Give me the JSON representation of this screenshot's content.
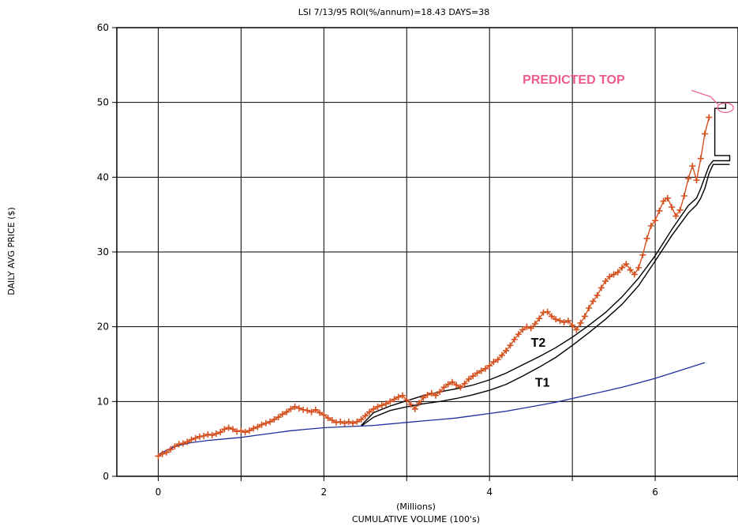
{
  "chart_data": {
    "type": "line",
    "title": "LSI  7/13/95  ROI(%/annum)=18.43  DAYS=38",
    "xlabel": "CUMULATIVE VOLUME (100's)",
    "xlabel_units": "(Millions)",
    "ylabel": "DAILY AVG PRICE ($)",
    "xlim": [
      -0.5,
      7.0
    ],
    "ylim": [
      0,
      60
    ],
    "x_ticks": [
      0,
      2,
      4,
      6
    ],
    "y_ticks": [
      0,
      10,
      20,
      30,
      40,
      50,
      60
    ],
    "grid": true,
    "colors": {
      "price": "#d4501e",
      "trend": "#000000",
      "baseline": "#1f2f9e",
      "annotation": "#ee5a8a"
    },
    "series": [
      {
        "key": "price",
        "marker": "+",
        "points": [
          [
            0.0,
            2.7
          ],
          [
            0.05,
            3.0
          ],
          [
            0.1,
            3.2
          ],
          [
            0.15,
            3.6
          ],
          [
            0.2,
            4.0
          ],
          [
            0.25,
            4.3
          ],
          [
            0.3,
            4.4
          ],
          [
            0.35,
            4.6
          ],
          [
            0.4,
            4.9
          ],
          [
            0.45,
            5.1
          ],
          [
            0.5,
            5.3
          ],
          [
            0.55,
            5.4
          ],
          [
            0.6,
            5.6
          ],
          [
            0.65,
            5.5
          ],
          [
            0.7,
            5.7
          ],
          [
            0.75,
            5.9
          ],
          [
            0.8,
            6.3
          ],
          [
            0.85,
            6.5
          ],
          [
            0.9,
            6.3
          ],
          [
            0.95,
            6.0
          ],
          [
            1.0,
            6.1
          ],
          [
            1.05,
            5.9
          ],
          [
            1.1,
            6.1
          ],
          [
            1.15,
            6.4
          ],
          [
            1.2,
            6.6
          ],
          [
            1.25,
            6.9
          ],
          [
            1.3,
            7.1
          ],
          [
            1.35,
            7.3
          ],
          [
            1.4,
            7.6
          ],
          [
            1.45,
            7.9
          ],
          [
            1.5,
            8.3
          ],
          [
            1.55,
            8.6
          ],
          [
            1.6,
            9.0
          ],
          [
            1.65,
            9.3
          ],
          [
            1.7,
            9.1
          ],
          [
            1.75,
            8.9
          ],
          [
            1.8,
            8.8
          ],
          [
            1.85,
            8.6
          ],
          [
            1.9,
            8.9
          ],
          [
            1.95,
            8.5
          ],
          [
            2.0,
            8.2
          ],
          [
            2.05,
            7.8
          ],
          [
            2.1,
            7.5
          ],
          [
            2.15,
            7.2
          ],
          [
            2.2,
            7.3
          ],
          [
            2.25,
            7.1
          ],
          [
            2.3,
            7.3
          ],
          [
            2.35,
            7.1
          ],
          [
            2.4,
            7.3
          ],
          [
            2.45,
            7.6
          ],
          [
            2.5,
            8.1
          ],
          [
            2.55,
            8.6
          ],
          [
            2.6,
            9.0
          ],
          [
            2.65,
            9.3
          ],
          [
            2.7,
            9.5
          ],
          [
            2.75,
            9.7
          ],
          [
            2.8,
            10.0
          ],
          [
            2.85,
            10.3
          ],
          [
            2.9,
            10.6
          ],
          [
            2.95,
            10.8
          ],
          [
            3.0,
            10.2
          ],
          [
            3.05,
            9.6
          ],
          [
            3.1,
            9.0
          ],
          [
            3.15,
            9.8
          ],
          [
            3.2,
            10.5
          ],
          [
            3.25,
            10.9
          ],
          [
            3.3,
            11.1
          ],
          [
            3.35,
            10.8
          ],
          [
            3.4,
            11.3
          ],
          [
            3.45,
            11.9
          ],
          [
            3.5,
            12.3
          ],
          [
            3.55,
            12.6
          ],
          [
            3.6,
            12.2
          ],
          [
            3.65,
            11.9
          ],
          [
            3.7,
            12.4
          ],
          [
            3.75,
            13.0
          ],
          [
            3.8,
            13.4
          ],
          [
            3.85,
            13.8
          ],
          [
            3.9,
            14.1
          ],
          [
            3.95,
            14.4
          ],
          [
            4.0,
            14.8
          ],
          [
            4.05,
            15.3
          ],
          [
            4.1,
            15.6
          ],
          [
            4.15,
            16.2
          ],
          [
            4.2,
            16.8
          ],
          [
            4.25,
            17.5
          ],
          [
            4.3,
            18.3
          ],
          [
            4.35,
            19.0
          ],
          [
            4.4,
            19.6
          ],
          [
            4.45,
            20.0
          ],
          [
            4.5,
            19.8
          ],
          [
            4.55,
            20.4
          ],
          [
            4.6,
            21.1
          ],
          [
            4.65,
            21.9
          ],
          [
            4.7,
            22.0
          ],
          [
            4.75,
            21.4
          ],
          [
            4.8,
            21.0
          ],
          [
            4.85,
            20.8
          ],
          [
            4.9,
            20.6
          ],
          [
            4.95,
            20.8
          ],
          [
            5.0,
            20.2
          ],
          [
            5.05,
            19.6
          ],
          [
            5.1,
            20.5
          ],
          [
            5.15,
            21.4
          ],
          [
            5.2,
            22.5
          ],
          [
            5.25,
            23.4
          ],
          [
            5.3,
            24.2
          ],
          [
            5.35,
            25.2
          ],
          [
            5.4,
            26.1
          ],
          [
            5.45,
            26.7
          ],
          [
            5.5,
            27.0
          ],
          [
            5.55,
            27.3
          ],
          [
            5.6,
            27.9
          ],
          [
            5.65,
            28.4
          ],
          [
            5.7,
            27.6
          ],
          [
            5.75,
            27.0
          ],
          [
            5.8,
            27.9
          ],
          [
            5.85,
            29.6
          ],
          [
            5.9,
            31.8
          ],
          [
            5.95,
            33.5
          ],
          [
            6.0,
            34.2
          ],
          [
            6.05,
            35.5
          ],
          [
            6.1,
            36.8
          ],
          [
            6.15,
            37.2
          ],
          [
            6.2,
            36.0
          ],
          [
            6.25,
            34.8
          ],
          [
            6.3,
            35.6
          ],
          [
            6.35,
            37.5
          ],
          [
            6.4,
            39.8
          ],
          [
            6.45,
            41.5
          ],
          [
            6.5,
            39.6
          ],
          [
            6.55,
            42.5
          ],
          [
            6.6,
            45.8
          ],
          [
            6.65,
            48.0
          ]
        ]
      },
      {
        "key": "trend-t2",
        "label": "T2",
        "points": [
          [
            2.45,
            6.8
          ],
          [
            2.6,
            8.5
          ],
          [
            2.8,
            9.4
          ],
          [
            3.0,
            10.1
          ],
          [
            3.2,
            10.8
          ],
          [
            3.4,
            11.3
          ],
          [
            3.6,
            11.7
          ],
          [
            3.8,
            12.2
          ],
          [
            4.0,
            12.9
          ],
          [
            4.2,
            13.8
          ],
          [
            4.4,
            14.9
          ],
          [
            4.6,
            16.0
          ],
          [
            4.8,
            17.2
          ],
          [
            5.0,
            18.6
          ],
          [
            5.2,
            20.2
          ],
          [
            5.4,
            21.9
          ],
          [
            5.6,
            24.0
          ],
          [
            5.8,
            26.5
          ],
          [
            6.0,
            29.5
          ],
          [
            6.2,
            33.0
          ],
          [
            6.4,
            36.2
          ],
          [
            6.5,
            37.2
          ],
          [
            6.55,
            38.5
          ],
          [
            6.6,
            40.0
          ],
          [
            6.65,
            41.5
          ],
          [
            6.7,
            42.2
          ],
          [
            6.9,
            42.2
          ],
          [
            6.9,
            42.9
          ],
          [
            6.72,
            42.9
          ],
          [
            6.72,
            49.2
          ],
          [
            6.85,
            49.2
          ],
          [
            6.85,
            49.9
          ],
          [
            6.8,
            49.9
          ]
        ]
      },
      {
        "key": "trend-t1",
        "label": "T1",
        "points": [
          [
            2.45,
            6.7
          ],
          [
            2.6,
            7.9
          ],
          [
            2.8,
            8.8
          ],
          [
            3.0,
            9.3
          ],
          [
            3.2,
            9.7
          ],
          [
            3.4,
            10.0
          ],
          [
            3.6,
            10.4
          ],
          [
            3.8,
            10.9
          ],
          [
            4.0,
            11.5
          ],
          [
            4.2,
            12.3
          ],
          [
            4.4,
            13.4
          ],
          [
            4.6,
            14.6
          ],
          [
            4.8,
            15.9
          ],
          [
            5.0,
            17.5
          ],
          [
            5.2,
            19.2
          ],
          [
            5.4,
            21.0
          ],
          [
            5.6,
            23.0
          ],
          [
            5.8,
            25.5
          ],
          [
            6.0,
            28.8
          ],
          [
            6.2,
            32.2
          ],
          [
            6.4,
            35.2
          ],
          [
            6.5,
            36.3
          ],
          [
            6.55,
            37.2
          ],
          [
            6.6,
            38.5
          ],
          [
            6.65,
            40.5
          ],
          [
            6.7,
            41.7
          ],
          [
            6.9,
            41.7
          ]
        ]
      },
      {
        "key": "baseline",
        "points": [
          [
            0.0,
            2.9
          ],
          [
            0.1,
            3.5
          ],
          [
            0.2,
            4.0
          ],
          [
            0.4,
            4.5
          ],
          [
            0.6,
            4.8
          ],
          [
            0.8,
            5.0
          ],
          [
            1.0,
            5.2
          ],
          [
            1.2,
            5.5
          ],
          [
            1.4,
            5.8
          ],
          [
            1.6,
            6.1
          ],
          [
            1.8,
            6.3
          ],
          [
            2.0,
            6.5
          ],
          [
            2.2,
            6.6
          ],
          [
            2.4,
            6.7
          ],
          [
            2.6,
            6.8
          ],
          [
            2.8,
            7.0
          ],
          [
            3.0,
            7.2
          ],
          [
            3.2,
            7.4
          ],
          [
            3.4,
            7.6
          ],
          [
            3.6,
            7.8
          ],
          [
            3.8,
            8.1
          ],
          [
            4.0,
            8.4
          ],
          [
            4.2,
            8.7
          ],
          [
            4.4,
            9.1
          ],
          [
            4.6,
            9.5
          ],
          [
            4.8,
            9.9
          ],
          [
            5.0,
            10.4
          ],
          [
            5.2,
            10.9
          ],
          [
            5.4,
            11.4
          ],
          [
            5.6,
            11.9
          ],
          [
            5.8,
            12.5
          ],
          [
            6.0,
            13.1
          ],
          [
            6.2,
            13.8
          ],
          [
            6.4,
            14.5
          ],
          [
            6.6,
            15.2
          ]
        ]
      }
    ],
    "annotations": [
      {
        "key": "t2",
        "text": "T2",
        "x": 4.5,
        "y": 17.3
      },
      {
        "key": "t1",
        "text": "T1",
        "x": 4.55,
        "y": 12.0
      },
      {
        "key": "predicted-top",
        "text": "PREDICTED TOP",
        "x": 4.4,
        "y": 52.5,
        "target_x": 6.82,
        "target_y": 49.5
      }
    ]
  }
}
